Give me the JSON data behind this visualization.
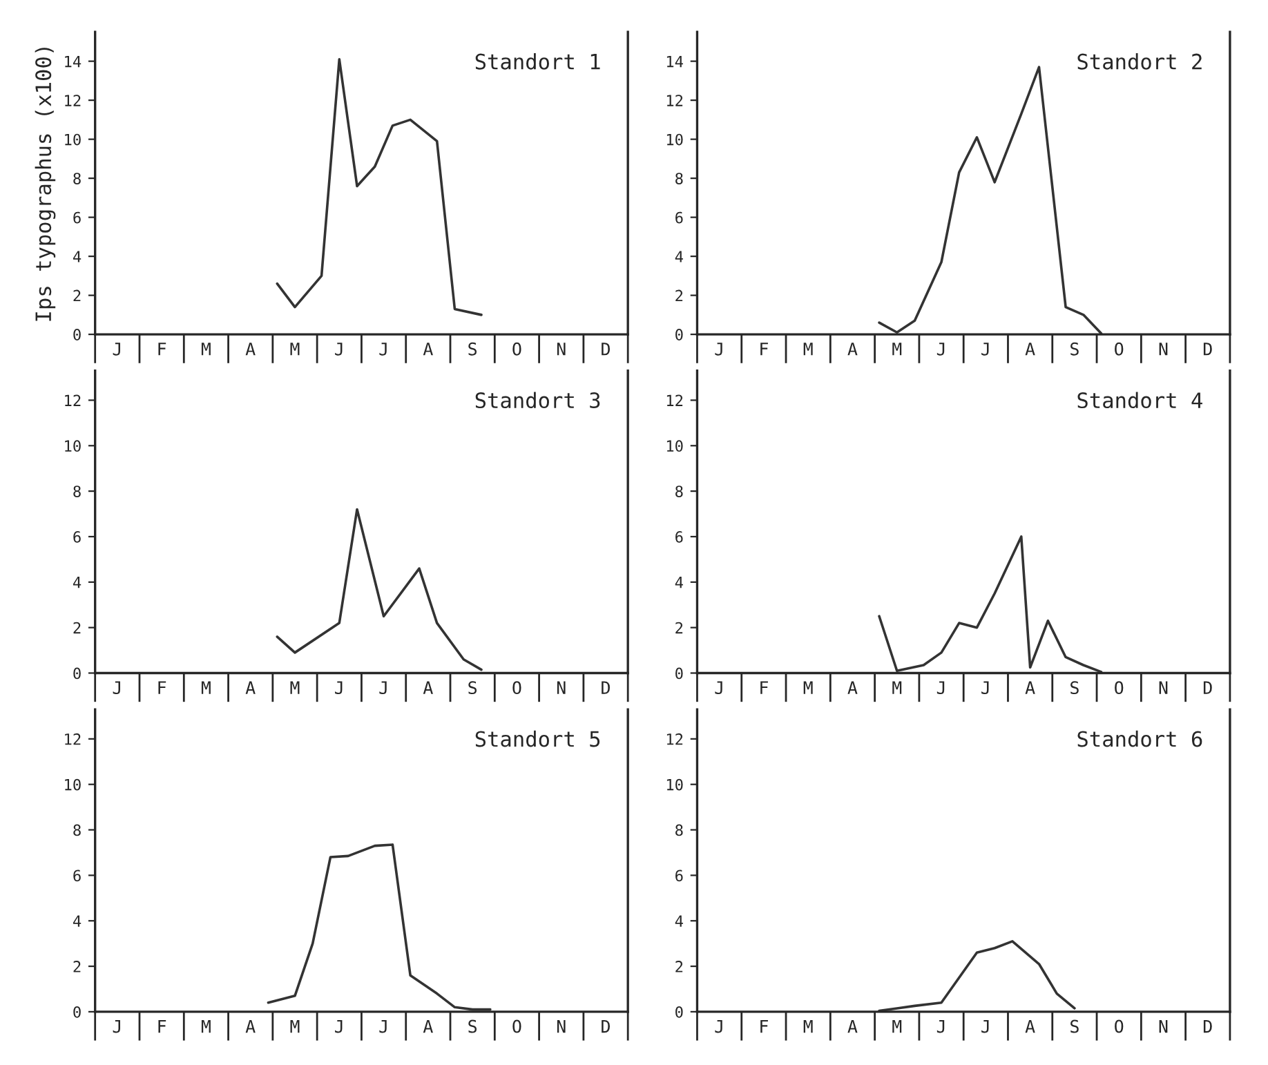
{
  "chart_data": [
    {
      "type": "line",
      "title": "Standort 1",
      "ylabel": "Ips typographus (x100)",
      "color": "#333333",
      "ylim": [
        0,
        15.5
      ],
      "yticks": [
        0,
        2,
        4,
        6,
        8,
        10,
        12,
        14
      ],
      "categories": [
        null,
        null,
        "J",
        null,
        null,
        null,
        null,
        "F",
        null,
        null,
        null,
        null,
        "M",
        null,
        null,
        null,
        null,
        "A",
        null,
        null,
        null,
        null,
        "M",
        null,
        null,
        null,
        null,
        "J",
        null,
        null,
        null,
        null,
        "J",
        null,
        null,
        null,
        null,
        "A",
        null,
        null,
        null,
        null,
        "S",
        null,
        null,
        null,
        null,
        "O",
        null,
        null,
        null,
        null,
        "N",
        null,
        null,
        null,
        null,
        "D",
        null,
        null
      ],
      "values": [
        null,
        null,
        null,
        null,
        null,
        null,
        null,
        null,
        null,
        null,
        null,
        null,
        null,
        null,
        null,
        null,
        null,
        null,
        null,
        null,
        2.6,
        null,
        1.4,
        null,
        null,
        3.0,
        null,
        14.1,
        null,
        7.6,
        null,
        8.6,
        null,
        10.7,
        null,
        11.0,
        null,
        null,
        9.9,
        null,
        1.3,
        null,
        null,
        1.0,
        null,
        null,
        null,
        null,
        null,
        null,
        null,
        null,
        null,
        null,
        null,
        null,
        null,
        null,
        null,
        null
      ]
    },
    {
      "type": "line",
      "title": "Standort 2",
      "color": "#333333",
      "ylim": [
        0,
        15.5
      ],
      "yticks": [
        0,
        2,
        4,
        6,
        8,
        10,
        12,
        14
      ],
      "categories": [
        null,
        null,
        "J",
        null,
        null,
        null,
        null,
        "F",
        null,
        null,
        null,
        null,
        "M",
        null,
        null,
        null,
        null,
        "A",
        null,
        null,
        null,
        null,
        "M",
        null,
        null,
        null,
        null,
        "J",
        null,
        null,
        null,
        null,
        "J",
        null,
        null,
        null,
        null,
        "A",
        null,
        null,
        null,
        null,
        "S",
        null,
        null,
        null,
        null,
        "O",
        null,
        null,
        null,
        null,
        "N",
        null,
        null,
        null,
        null,
        "D",
        null,
        null
      ],
      "values": [
        null,
        null,
        null,
        null,
        null,
        null,
        null,
        null,
        null,
        null,
        null,
        null,
        null,
        null,
        null,
        null,
        null,
        null,
        null,
        null,
        0.6,
        null,
        0.1,
        null,
        0.7,
        null,
        null,
        3.7,
        null,
        8.3,
        null,
        10.1,
        null,
        7.8,
        null,
        null,
        11.3,
        null,
        13.7,
        null,
        null,
        1.4,
        null,
        1.0,
        null,
        0.05,
        null,
        null,
        null,
        null,
        null,
        null,
        null,
        null,
        null,
        null,
        null,
        null,
        null,
        null
      ]
    },
    {
      "type": "line",
      "title": "Standort 3",
      "color": "#333333",
      "ylim": [
        0,
        13.3
      ],
      "yticks": [
        0,
        2,
        4,
        6,
        8,
        10,
        12
      ],
      "categories": [
        null,
        null,
        "J",
        null,
        null,
        null,
        null,
        "F",
        null,
        null,
        null,
        null,
        "M",
        null,
        null,
        null,
        null,
        "A",
        null,
        null,
        null,
        null,
        "M",
        null,
        null,
        null,
        null,
        "J",
        null,
        null,
        null,
        null,
        "J",
        null,
        null,
        null,
        null,
        "A",
        null,
        null,
        null,
        null,
        "S",
        null,
        null,
        null,
        null,
        "O",
        null,
        null,
        null,
        null,
        "N",
        null,
        null,
        null,
        null,
        "D",
        null,
        null
      ],
      "values": [
        null,
        null,
        null,
        null,
        null,
        null,
        null,
        null,
        null,
        null,
        null,
        null,
        null,
        null,
        null,
        null,
        null,
        null,
        null,
        null,
        1.6,
        null,
        0.9,
        null,
        null,
        null,
        null,
        2.2,
        null,
        7.2,
        null,
        null,
        2.5,
        null,
        null,
        null,
        4.6,
        null,
        2.2,
        null,
        null,
        0.6,
        null,
        0.15,
        null,
        null,
        null,
        null,
        null,
        null,
        null,
        null,
        null,
        null,
        null,
        null,
        null,
        null,
        null,
        null
      ]
    },
    {
      "type": "line",
      "title": "Standort 4",
      "color": "#333333",
      "ylim": [
        0,
        13.3
      ],
      "yticks": [
        0,
        2,
        4,
        6,
        8,
        10,
        12
      ],
      "categories": [
        null,
        null,
        "J",
        null,
        null,
        null,
        null,
        "F",
        null,
        null,
        null,
        null,
        "M",
        null,
        null,
        null,
        null,
        "A",
        null,
        null,
        null,
        null,
        "M",
        null,
        null,
        null,
        null,
        "J",
        null,
        null,
        null,
        null,
        "J",
        null,
        null,
        null,
        null,
        "A",
        null,
        null,
        null,
        null,
        "S",
        null,
        null,
        null,
        null,
        "O",
        null,
        null,
        null,
        null,
        "N",
        null,
        null,
        null,
        null,
        "D",
        null,
        null
      ],
      "values": [
        null,
        null,
        null,
        null,
        null,
        null,
        null,
        null,
        null,
        null,
        null,
        null,
        null,
        null,
        null,
        null,
        null,
        null,
        null,
        null,
        2.5,
        null,
        0.1,
        null,
        null,
        0.35,
        null,
        0.9,
        null,
        2.2,
        null,
        2.0,
        null,
        3.5,
        null,
        null,
        6.0,
        0.25,
        null,
        2.3,
        null,
        0.7,
        null,
        0.35,
        null,
        0.05,
        null,
        null,
        null,
        null,
        null,
        null,
        null,
        null,
        null,
        null,
        null,
        null,
        null,
        null
      ]
    },
    {
      "type": "line",
      "title": "Standort 5",
      "color": "#333333",
      "ylim": [
        0,
        13.3
      ],
      "yticks": [
        0,
        2,
        4,
        6,
        8,
        10,
        12
      ],
      "categories": [
        null,
        null,
        "J",
        null,
        null,
        null,
        null,
        "F",
        null,
        null,
        null,
        null,
        "M",
        null,
        null,
        null,
        null,
        "A",
        null,
        null,
        null,
        null,
        "M",
        null,
        null,
        null,
        null,
        "J",
        null,
        null,
        null,
        null,
        "J",
        null,
        null,
        null,
        null,
        "A",
        null,
        null,
        null,
        null,
        "S",
        null,
        null,
        null,
        null,
        "O",
        null,
        null,
        null,
        null,
        "N",
        null,
        null,
        null,
        null,
        "D",
        null,
        null
      ],
      "values": [
        null,
        null,
        null,
        null,
        null,
        null,
        null,
        null,
        null,
        null,
        null,
        null,
        null,
        null,
        null,
        null,
        null,
        null,
        null,
        0.4,
        null,
        null,
        0.7,
        null,
        3.0,
        null,
        6.8,
        null,
        6.85,
        null,
        null,
        7.3,
        null,
        7.35,
        null,
        1.6,
        null,
        null,
        0.8,
        null,
        0.2,
        null,
        0.1,
        null,
        0.1,
        null,
        null,
        null,
        null,
        null,
        null,
        null,
        null,
        null,
        null,
        null,
        null,
        null,
        null,
        null
      ]
    },
    {
      "type": "line",
      "title": "Standort 6",
      "color": "#333333",
      "ylim": [
        0,
        13.3
      ],
      "yticks": [
        0,
        2,
        4,
        6,
        8,
        10,
        12
      ],
      "categories": [
        null,
        null,
        "J",
        null,
        null,
        null,
        null,
        "F",
        null,
        null,
        null,
        null,
        "M",
        null,
        null,
        null,
        null,
        "A",
        null,
        null,
        null,
        null,
        "M",
        null,
        null,
        null,
        null,
        "J",
        null,
        null,
        null,
        null,
        "J",
        null,
        null,
        null,
        null,
        "A",
        null,
        null,
        null,
        null,
        "S",
        null,
        null,
        null,
        null,
        "O",
        null,
        null,
        null,
        null,
        "N",
        null,
        null,
        null,
        null,
        "D",
        null,
        null
      ],
      "values": [
        null,
        null,
        null,
        null,
        null,
        null,
        null,
        null,
        null,
        null,
        null,
        null,
        null,
        null,
        null,
        null,
        null,
        null,
        null,
        null,
        0.04,
        null,
        0.15,
        null,
        0.26,
        null,
        null,
        0.4,
        null,
        null,
        null,
        2.6,
        null,
        2.8,
        null,
        3.1,
        null,
        null,
        2.1,
        null,
        0.8,
        null,
        0.15,
        null,
        null,
        null,
        null,
        null,
        null,
        null,
        null,
        null,
        null,
        null,
        null,
        null,
        null,
        null,
        null,
        null
      ]
    }
  ]
}
